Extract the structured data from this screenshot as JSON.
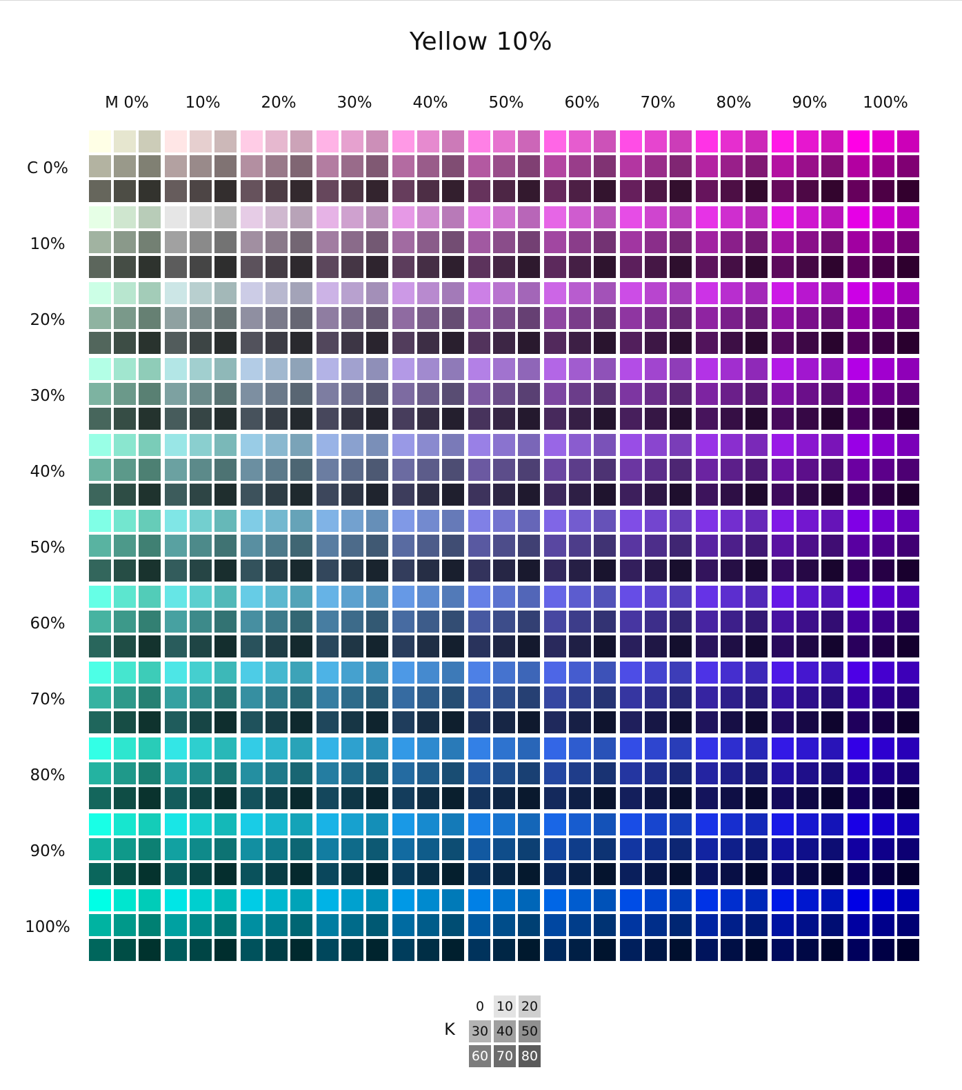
{
  "title": "Yellow 10%",
  "yellow": 0.1,
  "magenta_axis": {
    "prefix": "M",
    "labels": [
      "M 0%",
      "10%",
      "20%",
      "30%",
      "40%",
      "50%",
      "60%",
      "70%",
      "80%",
      "90%",
      "100%"
    ],
    "values": [
      0,
      10,
      20,
      30,
      40,
      50,
      60,
      70,
      80,
      90,
      100
    ]
  },
  "cyan_axis": {
    "prefix": "C",
    "labels": [
      "C 0%",
      "10%",
      "20%",
      "30%",
      "40%",
      "50%",
      "60%",
      "70%",
      "80%",
      "90%",
      "100%"
    ],
    "values": [
      0,
      10,
      20,
      30,
      40,
      50,
      60,
      70,
      80,
      90,
      100
    ]
  },
  "black_key": {
    "label": "K",
    "values": [
      "0",
      "10",
      "20",
      "30",
      "40",
      "50",
      "60",
      "70",
      "80"
    ],
    "colors": [
      "#ffffff",
      "#e3e3e3",
      "#cfcfcf",
      "#b3b3b3",
      "#a0a0a0",
      "#909090",
      "#7d7d7d",
      "#6c6c6c",
      "#5a5a5a"
    ]
  }
}
